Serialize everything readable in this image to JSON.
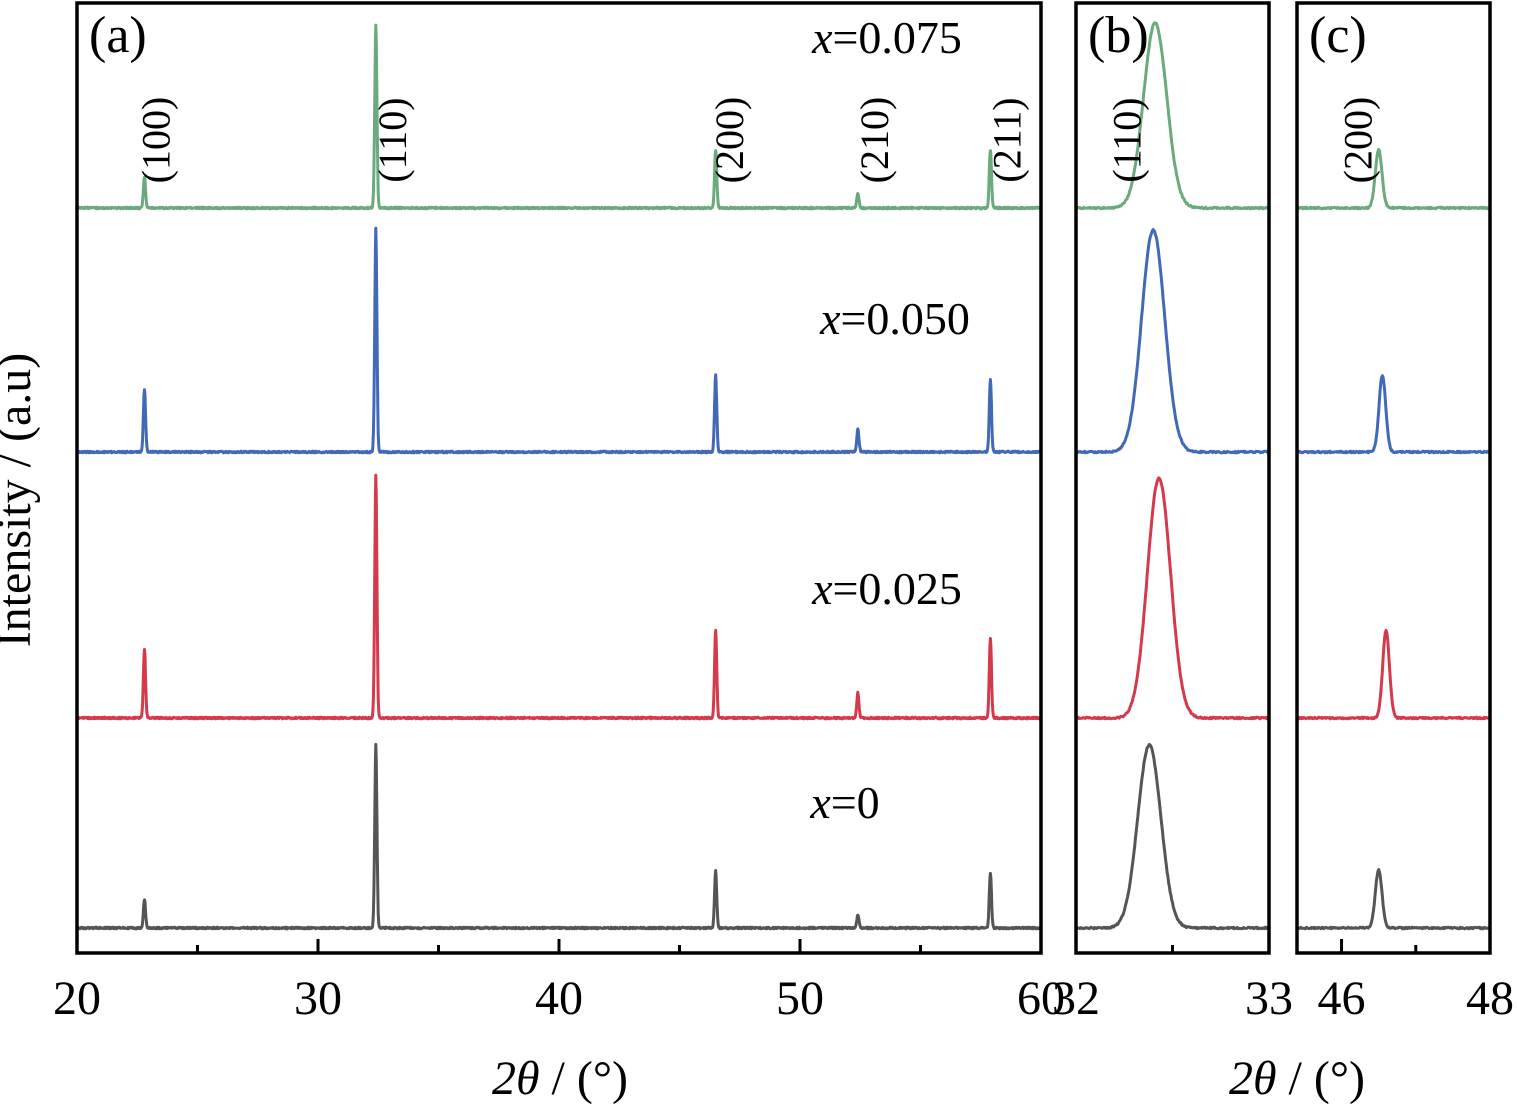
{
  "y_axis_label": "Intensity / (a.u)",
  "x_axis_label_prefix": "2",
  "x_axis_label_theta": "θ",
  "x_axis_label_suffix": " / (°)",
  "chart_data": [
    {
      "panel": "(a)",
      "type": "line",
      "xlim": [
        20,
        60
      ],
      "x_major_ticks": [
        20,
        30,
        40,
        50,
        60
      ],
      "x_minor_ticks": [
        25,
        35,
        45,
        55
      ],
      "xlabel": "2θ / (°)",
      "ylabel": "Intensity / (a.u)",
      "stacked_offset": true,
      "peak_labels": [
        {
          "text": "(100)",
          "x": 22.6
        },
        {
          "text": "(110)",
          "x": 32.4
        },
        {
          "text": "(200)",
          "x": 46.4
        },
        {
          "text": "(210)",
          "x": 52.4
        },
        {
          "text": "(211)",
          "x": 57.9
        }
      ],
      "series": [
        {
          "name": "x=0",
          "var": "x",
          "value": "=0",
          "color": "#555555",
          "peaks": [
            {
              "x": 22.8,
              "h": 28
            },
            {
              "x": 32.4,
              "h": 183
            },
            {
              "x": 46.5,
              "h": 57
            },
            {
              "x": 52.4,
              "h": 13
            },
            {
              "x": 57.9,
              "h": 55
            }
          ]
        },
        {
          "name": "x=0.025",
          "var": "x",
          "value": "=0.025",
          "color": "#d43a4c",
          "peaks": [
            {
              "x": 22.8,
              "h": 68
            },
            {
              "x": 32.4,
              "h": 243
            },
            {
              "x": 46.5,
              "h": 88
            },
            {
              "x": 52.4,
              "h": 25
            },
            {
              "x": 57.9,
              "h": 80
            }
          ]
        },
        {
          "name": "x=0.050",
          "var": "x",
          "value": "=0.050",
          "color": "#4169b8",
          "peaks": [
            {
              "x": 22.8,
              "h": 63
            },
            {
              "x": 32.4,
              "h": 223
            },
            {
              "x": 46.5,
              "h": 77
            },
            {
              "x": 52.4,
              "h": 23
            },
            {
              "x": 57.9,
              "h": 73
            }
          ]
        },
        {
          "name": "x=0.075",
          "var": "x",
          "value": "=0.075",
          "color": "#6aaa7c",
          "peaks": [
            {
              "x": 22.8,
              "h": 31
            },
            {
              "x": 32.4,
              "h": 183
            },
            {
              "x": 46.5,
              "h": 58
            },
            {
              "x": 52.4,
              "h": 15
            },
            {
              "x": 57.9,
              "h": 58
            }
          ]
        }
      ]
    },
    {
      "panel": "(b)",
      "type": "line",
      "xlim": [
        32,
        33
      ],
      "x_major_ticks": [
        32,
        33
      ],
      "x_minor_ticks": [
        32.5
      ],
      "xlabel": "2θ / (°)",
      "peak_labels": [
        {
          "text": "(110)",
          "x": 32.18
        }
      ],
      "series": [
        {
          "name": "x=0",
          "color": "#555555",
          "center": 32.38,
          "h": 183
        },
        {
          "name": "x=0.025",
          "color": "#d43a4c",
          "center": 32.43,
          "h": 240
        },
        {
          "name": "x=0.050",
          "color": "#4169b8",
          "center": 32.4,
          "h": 222
        },
        {
          "name": "x=0.075",
          "color": "#6aaa7c",
          "center": 32.41,
          "h": 185
        }
      ]
    },
    {
      "panel": "(c)",
      "type": "line",
      "xlim": [
        45.4,
        48
      ],
      "x_major_ticks": [
        46,
        48
      ],
      "x_minor_ticks": [
        47
      ],
      "xlabel": "2θ / (°)",
      "peak_labels": [
        {
          "text": "(200)",
          "x": 46.0
        }
      ],
      "series": [
        {
          "name": "x=0",
          "color": "#555555",
          "center": 46.5,
          "h": 58
        },
        {
          "name": "x=0.025",
          "color": "#d43a4c",
          "center": 46.6,
          "h": 88
        },
        {
          "name": "x=0.050",
          "color": "#4169b8",
          "center": 46.55,
          "h": 77
        },
        {
          "name": "x=0.075",
          "color": "#6aaa7c",
          "center": 46.5,
          "h": 58
        }
      ]
    }
  ]
}
